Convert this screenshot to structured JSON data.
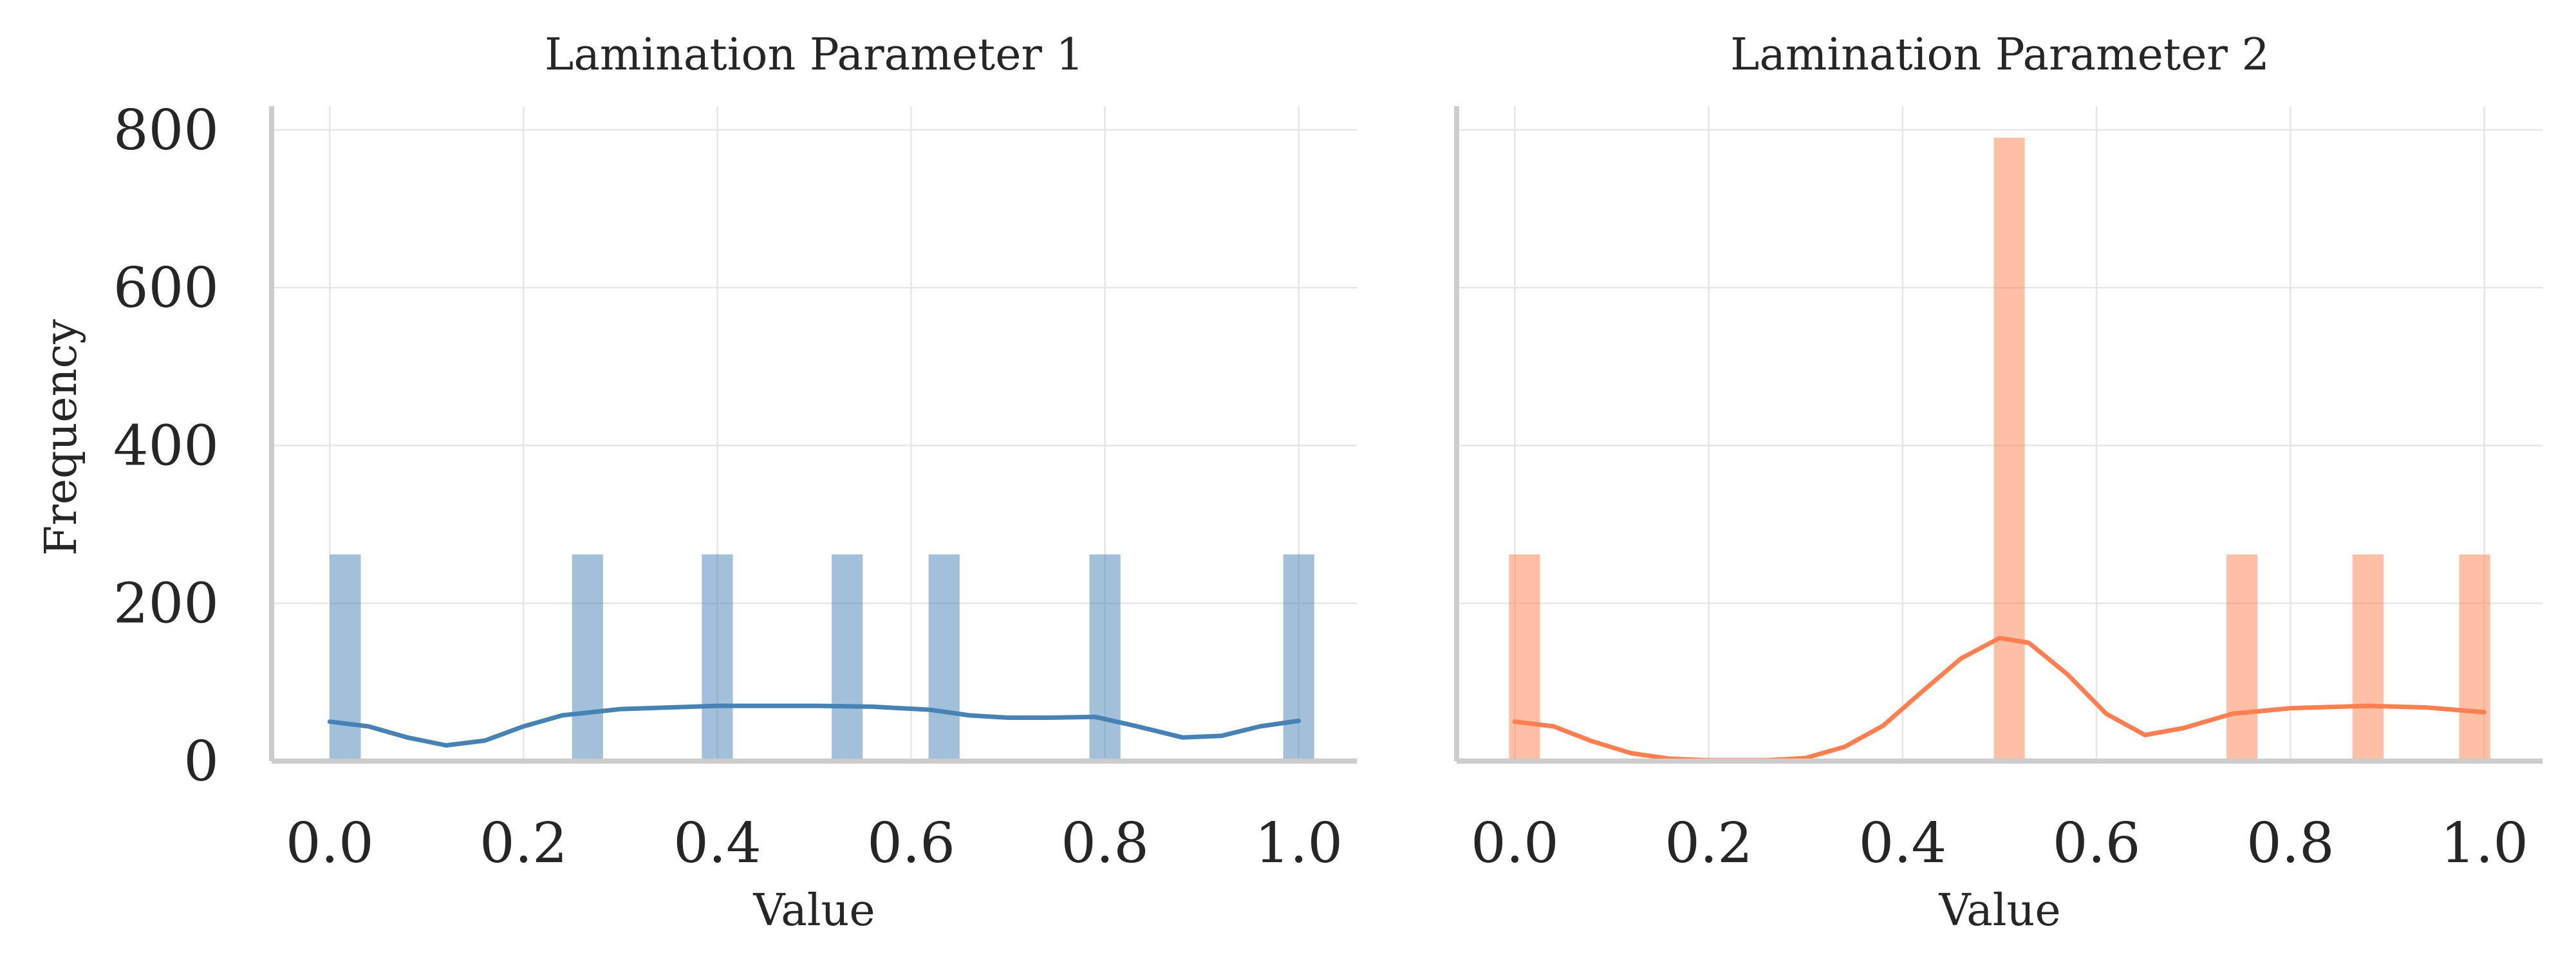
{
  "chart_data": [
    {
      "type": "bar",
      "title": "Lamination Parameter 1",
      "xlabel": "Value",
      "ylabel": "Frequency",
      "xlim": [
        -0.06,
        1.06
      ],
      "ylim": [
        0,
        830
      ],
      "xticks": [
        "0.0",
        "0.2",
        "0.4",
        "0.6",
        "0.8",
        "1.0"
      ],
      "yticks": [
        "0",
        "200",
        "400",
        "600",
        "800"
      ],
      "grid": true,
      "color": "#4682b4",
      "bar_width": 0.032,
      "bins": [
        {
          "x": 0.016,
          "count": 262
        },
        {
          "x": 0.266,
          "count": 262
        },
        {
          "x": 0.4,
          "count": 262
        },
        {
          "x": 0.534,
          "count": 262
        },
        {
          "x": 0.634,
          "count": 262
        },
        {
          "x": 0.8,
          "count": 262
        },
        {
          "x": 1.0,
          "count": 262
        }
      ],
      "kde": [
        {
          "x": 0.0,
          "y": 50
        },
        {
          "x": 0.04,
          "y": 44
        },
        {
          "x": 0.08,
          "y": 30
        },
        {
          "x": 0.12,
          "y": 20
        },
        {
          "x": 0.16,
          "y": 26
        },
        {
          "x": 0.2,
          "y": 44
        },
        {
          "x": 0.24,
          "y": 58
        },
        {
          "x": 0.3,
          "y": 66
        },
        {
          "x": 0.4,
          "y": 70
        },
        {
          "x": 0.5,
          "y": 70
        },
        {
          "x": 0.56,
          "y": 69
        },
        {
          "x": 0.62,
          "y": 65
        },
        {
          "x": 0.66,
          "y": 58
        },
        {
          "x": 0.7,
          "y": 55
        },
        {
          "x": 0.74,
          "y": 55
        },
        {
          "x": 0.79,
          "y": 56
        },
        {
          "x": 0.83,
          "y": 45
        },
        {
          "x": 0.88,
          "y": 30
        },
        {
          "x": 0.92,
          "y": 32
        },
        {
          "x": 0.96,
          "y": 44
        },
        {
          "x": 1.0,
          "y": 51
        }
      ]
    },
    {
      "type": "bar",
      "title": "Lamination Parameter 2",
      "xlabel": "Value",
      "ylabel": "",
      "xlim": [
        -0.06,
        1.06
      ],
      "ylim": [
        0,
        830
      ],
      "xticks": [
        "0.0",
        "0.2",
        "0.4",
        "0.6",
        "0.8",
        "1.0"
      ],
      "yticks": [],
      "grid": true,
      "color": "#ff7f50",
      "bar_width": 0.032,
      "bins": [
        {
          "x": 0.01,
          "count": 262
        },
        {
          "x": 0.51,
          "count": 790
        },
        {
          "x": 0.75,
          "count": 262
        },
        {
          "x": 0.88,
          "count": 262
        },
        {
          "x": 0.99,
          "count": 262
        }
      ],
      "kde": [
        {
          "x": 0.0,
          "y": 50
        },
        {
          "x": 0.04,
          "y": 44
        },
        {
          "x": 0.08,
          "y": 25
        },
        {
          "x": 0.12,
          "y": 10
        },
        {
          "x": 0.16,
          "y": 3
        },
        {
          "x": 0.2,
          "y": 1
        },
        {
          "x": 0.26,
          "y": 1
        },
        {
          "x": 0.3,
          "y": 4
        },
        {
          "x": 0.34,
          "y": 18
        },
        {
          "x": 0.38,
          "y": 45
        },
        {
          "x": 0.42,
          "y": 88
        },
        {
          "x": 0.46,
          "y": 130
        },
        {
          "x": 0.5,
          "y": 156
        },
        {
          "x": 0.53,
          "y": 150
        },
        {
          "x": 0.57,
          "y": 110
        },
        {
          "x": 0.61,
          "y": 60
        },
        {
          "x": 0.65,
          "y": 33
        },
        {
          "x": 0.69,
          "y": 42
        },
        {
          "x": 0.74,
          "y": 60
        },
        {
          "x": 0.8,
          "y": 67
        },
        {
          "x": 0.88,
          "y": 70
        },
        {
          "x": 0.94,
          "y": 68
        },
        {
          "x": 1.0,
          "y": 62
        }
      ]
    }
  ]
}
